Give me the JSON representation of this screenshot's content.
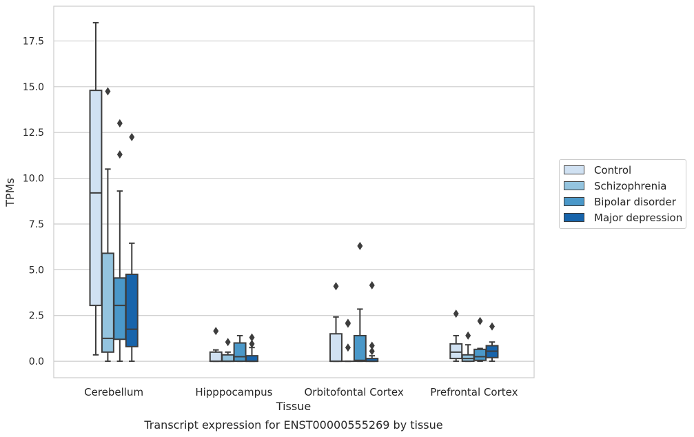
{
  "chart_data": {
    "type": "boxplot",
    "title": "Transcript expression for ENST00000555269 by tissue",
    "xlabel": "Tissue",
    "ylabel": "TPMs",
    "ylim": [
      -0.9,
      19.4
    ],
    "yticks": [
      0.0,
      2.5,
      5.0,
      7.5,
      10.0,
      12.5,
      15.0,
      17.5
    ],
    "ytick_labels": [
      "0.0",
      "2.5",
      "5.0",
      "7.5",
      "10.0",
      "12.5",
      "15.0",
      "17.5"
    ],
    "categories": [
      "Cerebellum",
      "Hipppocampus",
      "Orbitofontal Cortex",
      "Prefrontal Cortex"
    ],
    "grid": "horizontal",
    "legend_position": "right",
    "series": [
      {
        "name": "Control",
        "color": "#d0e1f2",
        "boxes": [
          {
            "whislo": 0.35,
            "q1": 3.05,
            "med": 9.2,
            "q3": 14.8,
            "whishi": 18.5,
            "fliers": []
          },
          {
            "whislo": 0.0,
            "q1": 0.0,
            "med": 0.0,
            "q3": 0.5,
            "whishi": 0.62,
            "fliers": [
              1.65
            ]
          },
          {
            "whislo": 0.0,
            "q1": 0.0,
            "med": 0.0,
            "q3": 1.5,
            "whishi": 2.42,
            "fliers": [
              4.1
            ]
          },
          {
            "whislo": 0.0,
            "q1": 0.15,
            "med": 0.5,
            "q3": 0.95,
            "whishi": 1.4,
            "fliers": [
              2.6
            ]
          }
        ]
      },
      {
        "name": "Schizophrenia",
        "color": "#94c4df",
        "boxes": [
          {
            "whislo": 0.0,
            "q1": 0.5,
            "med": 1.25,
            "q3": 5.9,
            "whishi": 10.5,
            "fliers": [
              14.75
            ]
          },
          {
            "whislo": 0.0,
            "q1": 0.0,
            "med": 0.0,
            "q3": 0.35,
            "whishi": 0.5,
            "fliers": [
              1.05
            ]
          },
          {
            "whislo": 0.0,
            "q1": 0.0,
            "med": 0.0,
            "q3": 0.0,
            "whishi": 0.0,
            "fliers": [
              0.75,
              2.05,
              2.1
            ]
          },
          {
            "whislo": 0.0,
            "q1": 0.0,
            "med": 0.15,
            "q3": 0.35,
            "whishi": 0.9,
            "fliers": [
              1.4
            ]
          }
        ]
      },
      {
        "name": "Bipolar disorder",
        "color": "#4a98c9",
        "boxes": [
          {
            "whislo": 0.0,
            "q1": 1.2,
            "med": 3.05,
            "q3": 4.55,
            "whishi": 9.3,
            "fliers": [
              11.3,
              13.0
            ]
          },
          {
            "whislo": 0.0,
            "q1": 0.0,
            "med": 0.25,
            "q3": 1.0,
            "whishi": 1.4,
            "fliers": []
          },
          {
            "whislo": 0.0,
            "q1": 0.0,
            "med": 0.05,
            "q3": 1.4,
            "whishi": 2.85,
            "fliers": [
              6.3
            ]
          },
          {
            "whislo": 0.0,
            "q1": 0.05,
            "med": 0.25,
            "q3": 0.65,
            "whishi": 0.7,
            "fliers": [
              2.2
            ]
          }
        ]
      },
      {
        "name": "Major depression",
        "color": "#1764ab",
        "boxes": [
          {
            "whislo": 0.0,
            "q1": 0.8,
            "med": 1.75,
            "q3": 4.75,
            "whishi": 6.45,
            "fliers": [
              12.25
            ]
          },
          {
            "whislo": 0.0,
            "q1": 0.0,
            "med": 0.0,
            "q3": 0.3,
            "whishi": 0.75,
            "fliers": [
              0.95,
              1.3
            ]
          },
          {
            "whislo": 0.0,
            "q1": 0.0,
            "med": 0.0,
            "q3": 0.15,
            "whishi": 0.3,
            "fliers": [
              0.55,
              0.85,
              4.15
            ]
          },
          {
            "whislo": 0.0,
            "q1": 0.2,
            "med": 0.55,
            "q3": 0.85,
            "whishi": 1.05,
            "fliers": [
              1.9
            ]
          }
        ]
      }
    ]
  }
}
